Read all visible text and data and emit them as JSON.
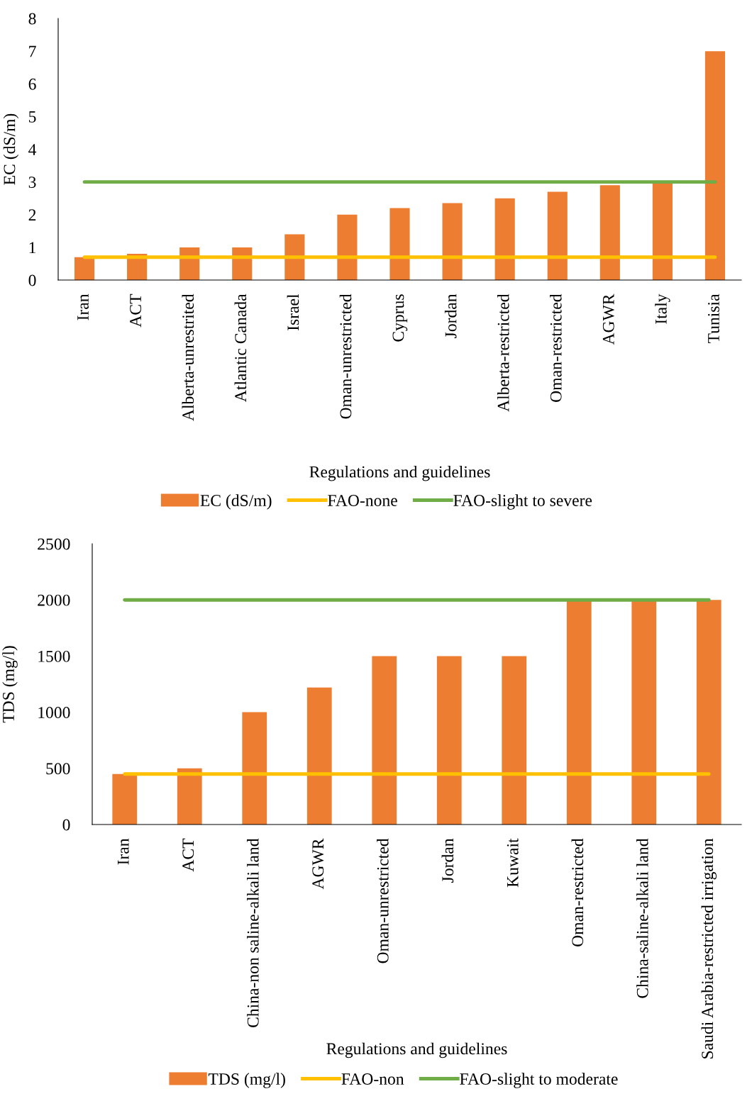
{
  "chart_data": [
    {
      "type": "bar",
      "xlabel": "Regulations and guidelines",
      "ylabel": "EC (dS/m)",
      "categories": [
        "Iran",
        "ACT",
        "Alberta-unrestrited",
        "Atlantic Canada",
        "Israel",
        "Oman-unrestricted",
        "Cyprus",
        "Jordan",
        "Alberta-restricted",
        "Oman-restricted",
        "AGWR",
        "Italy",
        "Tunisia"
      ],
      "series": [
        {
          "name": "EC (dS/m)",
          "color": "#ed7d31",
          "values": [
            0.7,
            0.8,
            1,
            1,
            1.4,
            2,
            2.2,
            2.35,
            2.5,
            2.7,
            2.9,
            3,
            7
          ]
        },
        {
          "name": "FAO-none",
          "type": "line",
          "color": "#ffc000",
          "values": [
            0.7,
            0.7,
            0.7,
            0.7,
            0.7,
            0.7,
            0.7,
            0.7,
            0.7,
            0.7,
            0.7,
            0.7,
            0.7
          ]
        },
        {
          "name": "FAO-slight to severe",
          "type": "line",
          "color": "#70ad47",
          "values": [
            3,
            3,
            3,
            3,
            3,
            3,
            3,
            3,
            3,
            3,
            3,
            3,
            3
          ]
        }
      ],
      "ylim": [
        0,
        8
      ],
      "yticks": [
        0,
        1,
        2,
        3,
        4,
        5,
        6,
        7,
        8
      ],
      "grid": false,
      "legend": "bottom"
    },
    {
      "type": "bar",
      "xlabel": "Regulations and guidelines",
      "ylabel": "TDS (mg/l)",
      "categories": [
        "Iran",
        "ACT",
        "China-non saline-alkali land",
        "AGWR",
        "Oman-unrestricted",
        "Jordan",
        "Kuwait",
        "Oman-restricted",
        "China-saline-alkali land",
        "Saudi Arabia-restricted irrigation"
      ],
      "series": [
        {
          "name": "TDS (mg/l)",
          "color": "#ed7d31",
          "values": [
            450,
            500,
            1000,
            1220,
            1500,
            1500,
            1500,
            2000,
            2000,
            2000
          ]
        },
        {
          "name": "FAO-non",
          "type": "line",
          "color": "#ffc000",
          "values": [
            450,
            450,
            450,
            450,
            450,
            450,
            450,
            450,
            450,
            450
          ]
        },
        {
          "name": "FAO-slight to moderate",
          "type": "line",
          "color": "#70ad47",
          "values": [
            2000,
            2000,
            2000,
            2000,
            2000,
            2000,
            2000,
            2000,
            2000,
            2000
          ]
        }
      ],
      "ylim": [
        0,
        2500
      ],
      "yticks": [
        0,
        500,
        1000,
        1500,
        2000,
        2500
      ],
      "grid": false,
      "legend": "bottom"
    }
  ]
}
